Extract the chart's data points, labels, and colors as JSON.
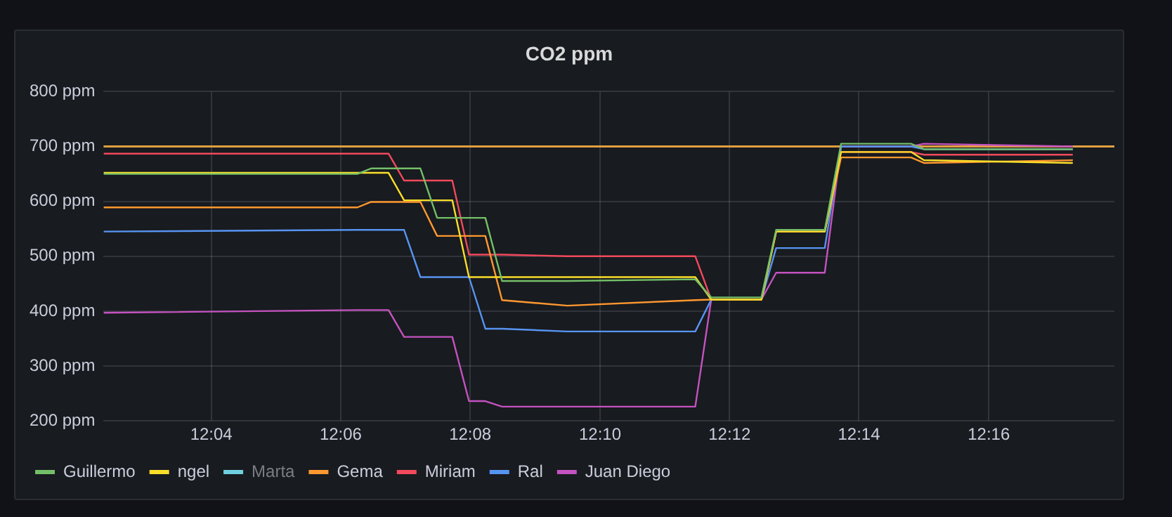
{
  "chart_data": {
    "type": "line",
    "title": "CO2 ppm",
    "x": [
      12.039,
      12.1043,
      12.1078,
      12.1123,
      12.1163,
      12.1205,
      12.1248,
      12.1287,
      12.133,
      12.1372,
      12.1415,
      12.1583,
      12.1912,
      12.1953,
      12.2082,
      12.212,
      12.2245,
      12.2287,
      12.2467,
      12.25,
      12.2883
    ],
    "series": [
      {
        "name": "Guillermo",
        "color": "#73bf69",
        "values": [
          650,
          650,
          660,
          660,
          660,
          660,
          570,
          570,
          570,
          570,
          455,
          455,
          458,
          425,
          425,
          548,
          548,
          705,
          705,
          695,
          695
        ]
      },
      {
        "name": "ngel",
        "color": "#fade2a",
        "values": [
          652,
          652,
          652,
          652,
          602,
          602,
          602,
          602,
          462,
          462,
          462,
          462,
          462,
          421,
          421,
          545,
          545,
          690,
          690,
          675,
          670
        ]
      },
      {
        "name": "Marta",
        "color": "#6ed0e0",
        "values": [
          null,
          null,
          null,
          null,
          null,
          null,
          null,
          null,
          null,
          null,
          null,
          null,
          null,
          null,
          null,
          null,
          null,
          null,
          null,
          null,
          null
        ]
      },
      {
        "name": "Gema",
        "color": "#ff9830",
        "values": [
          589,
          589,
          599,
          599,
          599,
          599,
          537,
          537,
          537,
          537,
          420,
          410,
          420,
          421,
          421,
          545,
          545,
          680,
          680,
          670,
          675
        ]
      },
      {
        "name": "Miriam",
        "color": "#f2495c",
        "values": [
          687,
          687,
          687,
          687,
          638,
          638,
          638,
          638,
          503,
          503,
          503,
          500,
          500,
          421,
          421,
          545,
          545,
          690,
          690,
          685,
          685
        ]
      },
      {
        "name": "Ral",
        "color": "#5794f2",
        "values": [
          545,
          548,
          548,
          548,
          548,
          462,
          462,
          462,
          462,
          368,
          368,
          363,
          363,
          421,
          421,
          515,
          515,
          700,
          700,
          695,
          695
        ]
      },
      {
        "name": "Juan Diego",
        "color": "#c452c0",
        "values": [
          397,
          402,
          402,
          402,
          353,
          353,
          353,
          353,
          236,
          236,
          226,
          226,
          226,
          421,
          421,
          470,
          470,
          700,
          700,
          705,
          700
        ]
      }
    ],
    "ref_lines": [
      {
        "axis": "y",
        "value": 700,
        "color": "#e0a040"
      }
    ],
    "xlim": [
      12.039,
      12.299
    ],
    "xticks": [
      {
        "value": 12.0667,
        "label": "12:04"
      },
      {
        "value": 12.1,
        "label": "12:06"
      },
      {
        "value": 12.1333,
        "label": "12:08"
      },
      {
        "value": 12.1667,
        "label": "12:10"
      },
      {
        "value": 12.2,
        "label": "12:12"
      },
      {
        "value": 12.2333,
        "label": "12:14"
      },
      {
        "value": 12.2667,
        "label": "12:16"
      }
    ],
    "ylim": [
      200,
      800
    ],
    "yticks": [
      {
        "value": 200,
        "label": "200 ppm"
      },
      {
        "value": 300,
        "label": "300 ppm"
      },
      {
        "value": 400,
        "label": "400 ppm"
      },
      {
        "value": 500,
        "label": "500 ppm"
      },
      {
        "value": 600,
        "label": "600 ppm"
      },
      {
        "value": 700,
        "label": "700 ppm"
      },
      {
        "value": 800,
        "label": "800 ppm"
      }
    ],
    "grid": true,
    "legend": "bottom left",
    "marker": "none",
    "line_style": "solid"
  }
}
